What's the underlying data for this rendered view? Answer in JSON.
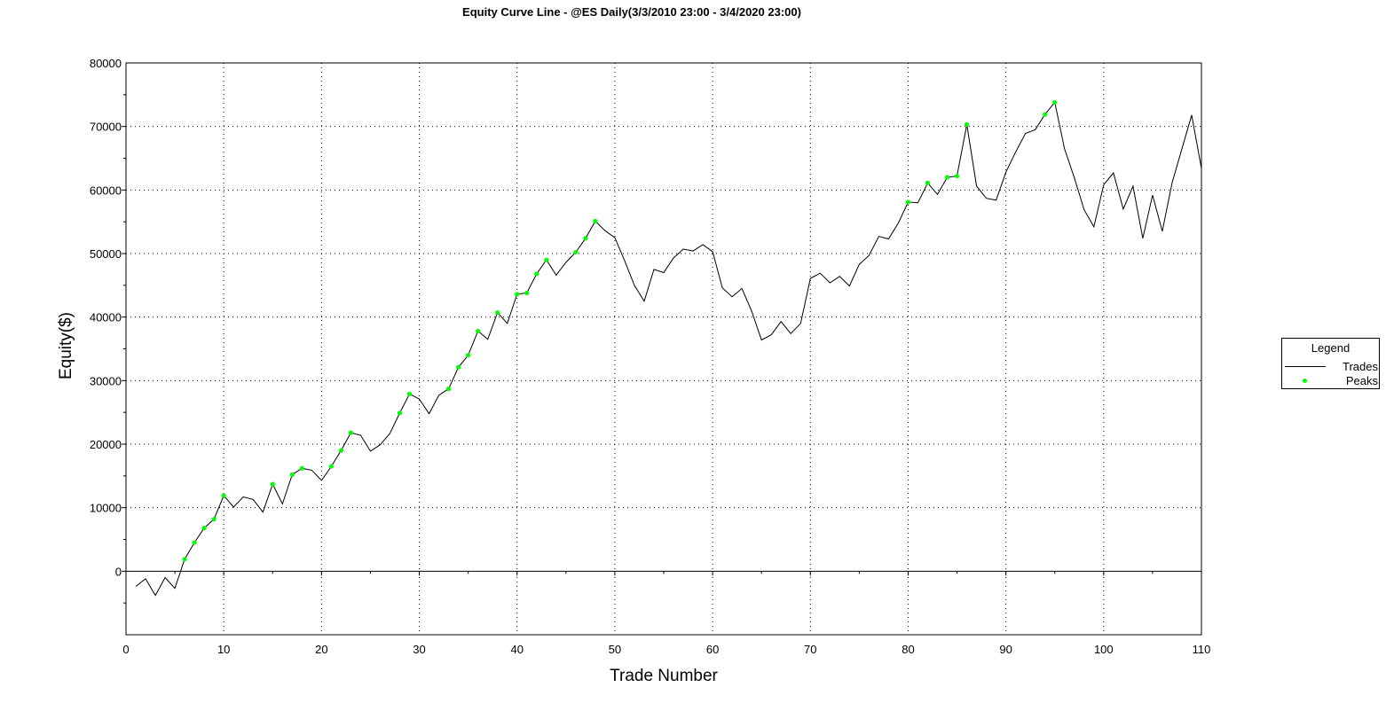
{
  "colors": {
    "trades_line": "#000000",
    "peaks_marker": "#00ff00",
    "grid": "#000000",
    "background": "#ffffff"
  },
  "chart_data": {
    "type": "line",
    "title": "Equity Curve Line - @ES Daily(3/3/2010 23:00 - 3/4/2020 23:00)",
    "xlabel": "Trade Number",
    "ylabel": "Equity($)",
    "xlim": [
      0,
      110
    ],
    "ylim": [
      -10000,
      80000
    ],
    "x_ticks": [
      0,
      10,
      20,
      30,
      40,
      50,
      60,
      70,
      80,
      90,
      100,
      110
    ],
    "y_ticks": [
      0,
      10000,
      20000,
      30000,
      40000,
      50000,
      60000,
      70000,
      80000
    ],
    "grid": true,
    "legend": {
      "title": "Legend",
      "position": "right"
    },
    "series": [
      {
        "name": "Trades",
        "x": [
          1,
          2,
          3,
          4,
          5,
          6,
          7,
          8,
          9,
          10,
          11,
          12,
          13,
          14,
          15,
          16,
          17,
          18,
          19,
          20,
          21,
          22,
          23,
          24,
          25,
          26,
          27,
          28,
          29,
          30,
          31,
          32,
          33,
          34,
          35,
          36,
          37,
          38,
          39,
          40,
          41,
          42,
          43,
          44,
          45,
          46,
          47,
          48,
          49,
          50,
          51,
          52,
          53,
          54,
          55,
          56,
          57,
          58,
          59,
          60,
          61,
          62,
          63,
          64,
          65,
          66,
          67,
          68,
          69,
          70,
          71,
          72,
          73,
          74,
          75,
          76,
          77,
          78,
          79,
          80,
          81,
          82,
          83,
          84,
          85,
          86,
          87,
          88,
          89,
          90,
          91,
          92,
          93,
          94,
          95,
          96,
          97,
          98,
          99,
          100,
          101,
          102,
          103,
          104,
          105,
          106,
          107,
          108,
          109,
          110
        ],
        "y": [
          -2400,
          -1200,
          -3800,
          -1000,
          -2700,
          1900,
          4500,
          6800,
          8200,
          11900,
          10100,
          11700,
          11300,
          9300,
          13700,
          10600,
          15200,
          16200,
          15900,
          14300,
          16500,
          19000,
          21800,
          21400,
          18900,
          19900,
          21700,
          24900,
          27900,
          27100,
          24800,
          27700,
          28700,
          32100,
          34000,
          37800,
          36500,
          40700,
          39000,
          43600,
          43800,
          46800,
          49000,
          46600,
          48600,
          50200,
          52400,
          55100,
          53600,
          52500,
          48900,
          45000,
          42500,
          47500,
          47000,
          49300,
          50700,
          50400,
          51400,
          50300,
          44600,
          43200,
          44500,
          40900,
          36400,
          37200,
          39300,
          37400,
          39000,
          46100,
          46900,
          45400,
          46400,
          44900,
          48300,
          49700,
          52700,
          52300,
          54800,
          58100,
          58000,
          61100,
          59300,
          62000,
          62200,
          70300,
          60600,
          58700,
          58400,
          62800,
          66000,
          68900,
          69500,
          71900,
          73800,
          66500,
          61900,
          56900,
          54200,
          60800,
          62700,
          57000,
          60600,
          52400,
          59200,
          53500,
          61100,
          66500,
          71800,
          63400
        ]
      },
      {
        "name": "Peaks",
        "x": [
          6,
          7,
          8,
          9,
          10,
          15,
          17,
          18,
          21,
          22,
          23,
          28,
          29,
          33,
          34,
          35,
          36,
          38,
          40,
          41,
          42,
          43,
          46,
          47,
          48,
          80,
          82,
          84,
          85,
          86,
          94,
          95
        ],
        "y": [
          1900,
          4500,
          6800,
          8200,
          11900,
          13700,
          15200,
          16200,
          16500,
          19000,
          21800,
          24900,
          27900,
          28700,
          32100,
          34000,
          37800,
          40700,
          43600,
          43800,
          46800,
          49000,
          50200,
          52400,
          55100,
          58100,
          61100,
          62000,
          62200,
          70300,
          71900,
          73800
        ]
      }
    ]
  }
}
